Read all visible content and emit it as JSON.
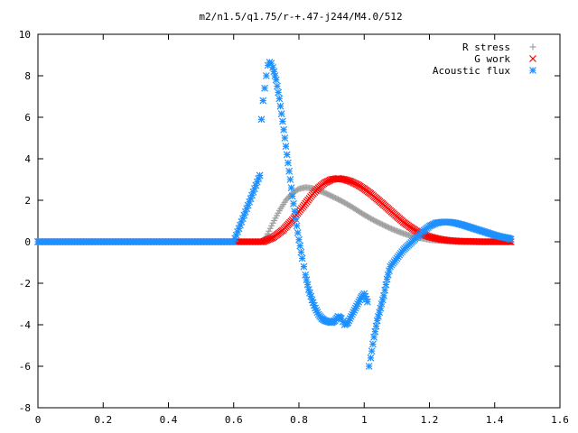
{
  "chart_data": {
    "type": "scatter",
    "title": "m2/n1.5/q1.75/r-+.47-j244/M4.0/512",
    "xlabel": "",
    "ylabel": "",
    "xlim": [
      0,
      1.6
    ],
    "ylim": [
      -8,
      10
    ],
    "x_ticks": [
      "0",
      "0.2",
      "0.4",
      "0.6",
      "0.8",
      "1",
      "1.2",
      "1.4",
      "1.6"
    ],
    "y_ticks": [
      "10",
      "8",
      "6",
      "4",
      "2",
      "0",
      "-2",
      "-4",
      "-6",
      "-8"
    ],
    "grid": false,
    "legend_position": "top-right",
    "series": [
      {
        "name": "R stress",
        "marker": "plus",
        "color": "#a0a0a0",
        "x": [
          0.0,
          0.1,
          0.2,
          0.3,
          0.4,
          0.5,
          0.6,
          0.69,
          0.7,
          0.72,
          0.74,
          0.76,
          0.78,
          0.8,
          0.82,
          0.84,
          0.86,
          0.88,
          0.9,
          0.92,
          0.94,
          0.96,
          0.98,
          1.0,
          1.02,
          1.04,
          1.06,
          1.08,
          1.1,
          1.12,
          1.14,
          1.16,
          1.18,
          1.2,
          1.22,
          1.24,
          1.26,
          1.28,
          1.3,
          1.32,
          1.34,
          1.36,
          1.38,
          1.4,
          1.42,
          1.45
        ],
        "y": [
          0,
          0,
          0,
          0,
          0,
          0,
          0,
          0,
          0.25,
          0.9,
          1.5,
          2.0,
          2.35,
          2.55,
          2.62,
          2.58,
          2.48,
          2.35,
          2.2,
          2.05,
          1.88,
          1.7,
          1.5,
          1.3,
          1.12,
          0.95,
          0.8,
          0.65,
          0.52,
          0.4,
          0.3,
          0.22,
          0.16,
          0.1,
          0.07,
          0.05,
          0.03,
          0.02,
          0.01,
          0.01,
          0,
          0,
          0,
          0,
          0,
          0
        ]
      },
      {
        "name": "G work",
        "marker": "cross",
        "color": "#ff0000",
        "x": [
          0.0,
          0.1,
          0.2,
          0.3,
          0.4,
          0.5,
          0.6,
          0.69,
          0.72,
          0.75,
          0.78,
          0.8,
          0.82,
          0.84,
          0.86,
          0.88,
          0.9,
          0.92,
          0.94,
          0.96,
          0.98,
          1.0,
          1.02,
          1.04,
          1.06,
          1.08,
          1.1,
          1.12,
          1.14,
          1.16,
          1.18,
          1.2,
          1.22,
          1.24,
          1.26,
          1.28,
          1.3,
          1.32,
          1.34,
          1.36,
          1.38,
          1.4,
          1.42,
          1.45
        ],
        "y": [
          0,
          0,
          0,
          0,
          0,
          0,
          0,
          0,
          0.2,
          0.55,
          1.05,
          1.45,
          1.85,
          2.25,
          2.6,
          2.85,
          3.0,
          3.05,
          3.0,
          2.9,
          2.75,
          2.55,
          2.32,
          2.05,
          1.78,
          1.5,
          1.22,
          0.95,
          0.72,
          0.52,
          0.36,
          0.24,
          0.16,
          0.1,
          0.06,
          0.04,
          0.02,
          0.02,
          0.01,
          0,
          0,
          0,
          0,
          0
        ]
      },
      {
        "name": "Acoustic flux",
        "marker": "star",
        "color": "#1e90ff",
        "x": [
          0.0,
          0.1,
          0.2,
          0.3,
          0.4,
          0.5,
          0.6,
          0.68,
          0.685,
          0.69,
          0.695,
          0.7,
          0.705,
          0.71,
          0.715,
          0.72,
          0.73,
          0.74,
          0.75,
          0.76,
          0.77,
          0.78,
          0.79,
          0.8,
          0.81,
          0.82,
          0.83,
          0.84,
          0.85,
          0.86,
          0.87,
          0.88,
          0.89,
          0.9,
          0.91,
          0.92,
          0.93,
          0.94,
          0.95,
          0.96,
          0.97,
          0.98,
          0.99,
          1.0,
          1.01,
          1.015,
          1.02,
          1.03,
          1.04,
          1.05,
          1.06,
          1.07,
          1.08,
          1.1,
          1.12,
          1.14,
          1.16,
          1.18,
          1.2,
          1.22,
          1.24,
          1.26,
          1.28,
          1.3,
          1.32,
          1.34,
          1.36,
          1.38,
          1.4,
          1.42,
          1.44,
          1.45
        ],
        "y": [
          0,
          0,
          0,
          0,
          0,
          0,
          0,
          3.2,
          5.9,
          6.8,
          7.4,
          8.0,
          8.5,
          8.65,
          8.6,
          8.4,
          7.8,
          6.9,
          5.8,
          4.6,
          3.4,
          2.2,
          1.1,
          0.1,
          -0.8,
          -1.6,
          -2.3,
          -2.8,
          -3.2,
          -3.5,
          -3.7,
          -3.8,
          -3.85,
          -3.9,
          -3.8,
          -3.6,
          -3.7,
          -4.0,
          -3.9,
          -3.6,
          -3.3,
          -3.0,
          -2.7,
          -2.5,
          -2.9,
          -6.0,
          -5.6,
          -4.6,
          -3.8,
          -3.2,
          -2.6,
          -1.8,
          -1.2,
          -0.8,
          -0.4,
          -0.1,
          0.2,
          0.5,
          0.75,
          0.9,
          0.95,
          0.95,
          0.9,
          0.82,
          0.72,
          0.62,
          0.52,
          0.42,
          0.32,
          0.24,
          0.18,
          0.12
        ]
      }
    ]
  }
}
